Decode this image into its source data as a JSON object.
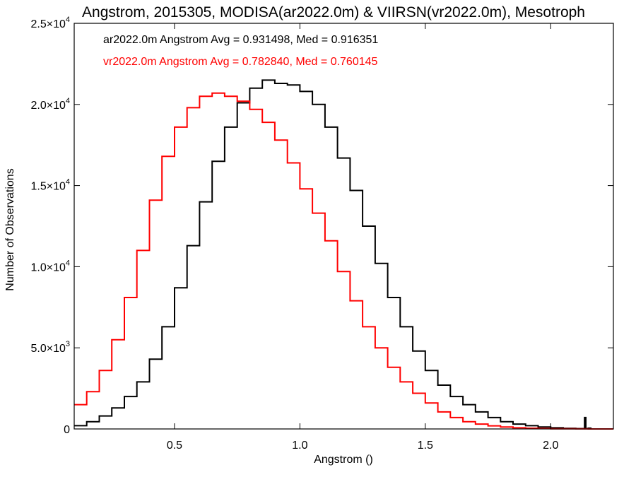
{
  "chart_data": {
    "type": "line",
    "title": "Angstrom, 2015305, MODISA(ar2022.0m) & VIIRSN(vr2022.0m), Mesotroph",
    "xlabel": "Angstrom ()",
    "ylabel": "Number of Observations",
    "xlim": [
      0.1,
      2.25
    ],
    "ylim": [
      0,
      25000
    ],
    "x_ticks": [
      {
        "value": 0.5,
        "label": "0.5"
      },
      {
        "value": 1.0,
        "label": "1.0"
      },
      {
        "value": 1.5,
        "label": "1.5"
      },
      {
        "value": 2.0,
        "label": "2.0"
      }
    ],
    "y_ticks": [
      {
        "value": 0,
        "mantissa": "0",
        "exp": ""
      },
      {
        "value": 5000,
        "mantissa": "5.0×10",
        "exp": "3"
      },
      {
        "value": 10000,
        "mantissa": "1.0×10",
        "exp": "4"
      },
      {
        "value": 15000,
        "mantissa": "1.5×10",
        "exp": "4"
      },
      {
        "value": 20000,
        "mantissa": "2.0×10",
        "exp": "4"
      },
      {
        "value": 25000,
        "mantissa": "2.5×10",
        "exp": "4"
      }
    ],
    "grid": false,
    "annotations": [
      {
        "text": "ar2022.0m Angstrom Avg = 0.931498, Med = 0.916351",
        "color": "#000000"
      },
      {
        "text": "vr2022.0m Angstrom Avg = 0.782840, Med = 0.760145",
        "color": "#ff0000"
      }
    ],
    "series": [
      {
        "color": "#000000",
        "style": "step",
        "x": [
          0.1,
          0.15,
          0.2,
          0.25,
          0.3,
          0.35,
          0.4,
          0.45,
          0.5,
          0.55,
          0.6,
          0.65,
          0.7,
          0.75,
          0.8,
          0.85,
          0.9,
          0.95,
          1.0,
          1.05,
          1.1,
          1.15,
          1.2,
          1.25,
          1.3,
          1.35,
          1.4,
          1.45,
          1.5,
          1.55,
          1.6,
          1.65,
          1.7,
          1.75,
          1.8,
          1.85,
          1.9,
          1.95,
          2.0,
          2.05,
          2.1,
          2.13,
          2.135,
          2.14,
          2.15,
          2.16,
          2.25
        ],
        "values": [
          200,
          450,
          800,
          1300,
          2000,
          2900,
          4300,
          6300,
          8700,
          11300,
          14000,
          16500,
          18600,
          20100,
          21000,
          21500,
          21300,
          21200,
          20800,
          20000,
          18600,
          16700,
          14700,
          12500,
          10200,
          8100,
          6300,
          4800,
          3600,
          2700,
          2000,
          1500,
          1050,
          700,
          450,
          300,
          200,
          120,
          70,
          40,
          20,
          20,
          700,
          20,
          50,
          0,
          0
        ]
      },
      {
        "color": "#ff0000",
        "style": "step",
        "x": [
          0.1,
          0.15,
          0.2,
          0.25,
          0.3,
          0.35,
          0.4,
          0.45,
          0.5,
          0.55,
          0.6,
          0.65,
          0.7,
          0.75,
          0.8,
          0.85,
          0.9,
          0.95,
          1.0,
          1.05,
          1.1,
          1.15,
          1.2,
          1.25,
          1.3,
          1.35,
          1.4,
          1.45,
          1.5,
          1.55,
          1.6,
          1.65,
          1.7,
          1.75,
          1.8,
          1.85,
          1.9,
          1.95,
          2.0,
          2.05,
          2.1,
          2.15,
          2.2,
          2.25
        ],
        "values": [
          1500,
          2300,
          3600,
          5500,
          8100,
          11000,
          14100,
          16800,
          18600,
          19800,
          20500,
          20700,
          20500,
          20200,
          19700,
          18900,
          17800,
          16400,
          14800,
          13300,
          11600,
          9700,
          7900,
          6300,
          5000,
          3800,
          2900,
          2200,
          1600,
          1050,
          700,
          450,
          300,
          190,
          120,
          70,
          45,
          25,
          15,
          10,
          5,
          0,
          0,
          0
        ]
      }
    ]
  }
}
